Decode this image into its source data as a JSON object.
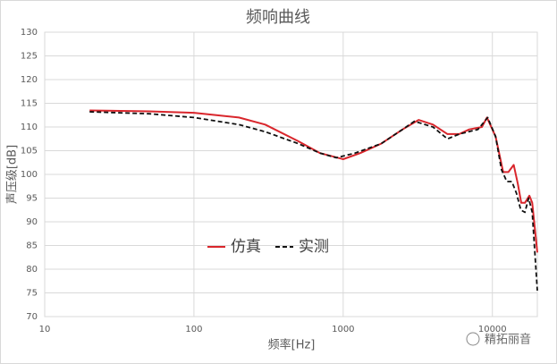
{
  "chart_data": {
    "type": "line",
    "title": "频响曲线",
    "x_label": "频率[Hz]",
    "y_label": "声压级[dB]",
    "log_x": true,
    "grid": true,
    "xlim": [
      10,
      20000
    ],
    "xticks": [
      10,
      100,
      1000,
      10000
    ],
    "ylim": [
      70,
      130
    ],
    "yticks": [
      70,
      75,
      80,
      85,
      90,
      95,
      100,
      105,
      110,
      115,
      120,
      125,
      130
    ],
    "watermark": "精拓丽音",
    "series": [
      {
        "name": "仿真",
        "color": "#d9262c",
        "dash": false,
        "x": [
          20,
          50,
          100,
          200,
          300,
          500,
          700,
          1000,
          1300,
          1800,
          2500,
          3200,
          4000,
          5000,
          6000,
          7000,
          8500,
          9200,
          10500,
          11800,
          12800,
          13900,
          14800,
          15600,
          16500,
          17700,
          18500,
          20000
        ],
        "values": [
          113.5,
          113.3,
          113,
          112,
          110.5,
          107,
          104.5,
          103.2,
          104.5,
          106.5,
          109.5,
          111.5,
          110.5,
          108.5,
          108.5,
          109.5,
          110,
          112,
          108,
          100.5,
          100.5,
          102,
          98,
          94,
          94,
          95.5,
          94,
          83.5
        ]
      },
      {
        "name": "实测",
        "color": "#111111",
        "dash": true,
        "x": [
          20,
          50,
          100,
          200,
          300,
          500,
          700,
          900,
          1200,
          1800,
          2500,
          3000,
          4000,
          5000,
          6000,
          8000,
          9300,
          10500,
          11500,
          12500,
          13500,
          14500,
          15500,
          16500,
          17500,
          18500,
          20000
        ],
        "values": [
          113.2,
          112.8,
          112,
          110.5,
          109,
          106.5,
          104.5,
          103.5,
          104.5,
          106.5,
          109.5,
          111.2,
          110,
          107.5,
          108.5,
          109.5,
          112,
          108,
          101,
          98.5,
          98.5,
          96,
          92.5,
          92,
          95,
          92,
          75.5
        ]
      }
    ]
  }
}
